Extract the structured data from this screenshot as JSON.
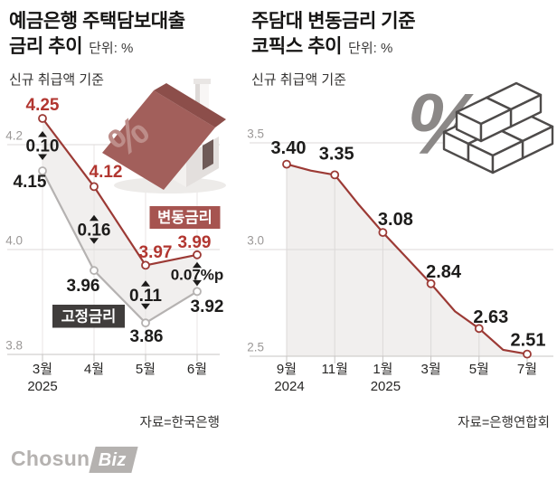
{
  "brand": {
    "chosun": "Chosun",
    "biz": "Biz"
  },
  "icons": {
    "house_percent": "%",
    "money_percent": "%"
  },
  "colors": {
    "red_line": "#9c3a35",
    "red_label": "#b23630",
    "red_box": "#a65450",
    "gray_line": "#b5b2b1",
    "dark_label": "#1d1c1b",
    "dark_box": "#403d3c",
    "grid": "#dcd9d8",
    "axis": "#c7c4c3",
    "vgrid_left": "#e8e5e4",
    "vgrid_right": "#dcd9d8",
    "fill": "#f1efee",
    "ytick": "#9b9897",
    "xtick": "#272625"
  },
  "chart_data": [
    {
      "type": "line",
      "title_line1": "예금은행 주택담보대출",
      "title_line2": "금리 추이",
      "unit_label": "단위: %",
      "subtitle": "신규 취급액 기준",
      "source": "자료=한국은행",
      "categories": [
        "3월",
        "4월",
        "5월",
        "6월"
      ],
      "category_years": {
        "0": "2025"
      },
      "series": [
        {
          "name": "변동금리",
          "values": [
            4.25,
            4.12,
            3.97,
            3.99
          ],
          "labels": [
            "4.25",
            "4.12",
            "3.97",
            "3.99"
          ]
        },
        {
          "name": "고정금리",
          "values": [
            4.15,
            3.96,
            3.86,
            3.92
          ],
          "labels": [
            "4.15",
            "3.96",
            "3.86",
            "3.92"
          ]
        }
      ],
      "gap_labels": [
        "0.10",
        "0.16",
        "0.11",
        "0.07%p"
      ],
      "yticks": [
        "4.2",
        "4.0",
        "3.8"
      ],
      "ytick_values": [
        4.2,
        4.0,
        3.8
      ],
      "ylim": [
        3.78,
        4.3
      ],
      "grid": "horizontal-and-vertical",
      "legend_position": "inside-plot"
    },
    {
      "type": "area",
      "title_line1": "주담대 변동금리 기준",
      "title_line2": "코픽스 추이",
      "unit_label": "단위: %",
      "subtitle": "신규 취급액 기준",
      "source": "자료=은행연합회",
      "categories": [
        "9월",
        "11월",
        "1월",
        "3월",
        "5월",
        "7월"
      ],
      "category_years": {
        "0": "2024",
        "2": "2025"
      },
      "values": [
        3.4,
        3.35,
        3.08,
        2.84,
        2.63,
        2.51
      ],
      "value_labels": [
        "3.40",
        "3.35",
        "3.08",
        "2.84",
        "2.63",
        "2.51"
      ],
      "monthly_values_estimated": [
        3.4,
        3.37,
        3.35,
        3.21,
        3.08,
        2.96,
        2.84,
        2.71,
        2.63,
        2.53,
        2.51
      ],
      "yticks": [
        "3.5",
        "3.0",
        "2.5"
      ],
      "ytick_values": [
        3.5,
        3.0,
        2.5
      ],
      "ylim": [
        2.5,
        3.55
      ],
      "grid": "horizontal-and-vertical",
      "legend_position": "none"
    }
  ]
}
